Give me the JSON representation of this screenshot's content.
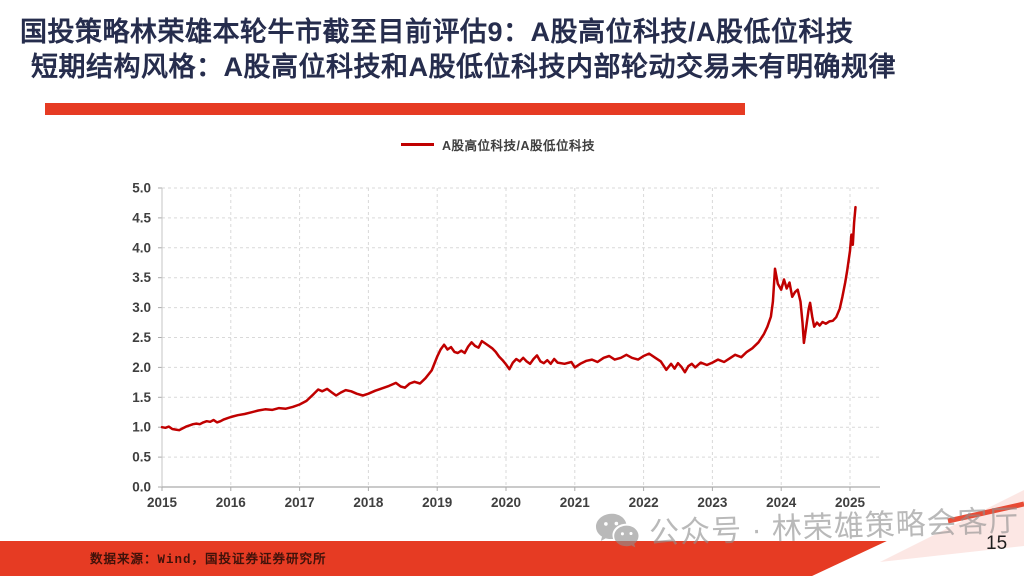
{
  "slide": {
    "title_line1": "国投策略林荣雄本轮牛市截至目前评估9：A股高位科技/A股低位科技",
    "title_line2": "短期结构风格：A股高位科技和A股低位科技内部轮动交易未有明确规律",
    "footer": {
      "source": "数据来源：Wind，国投证券证券研究所",
      "page_number": "15"
    },
    "watermark": {
      "icon": "wechat-icon",
      "text": "公众号 · 林荣雄策略会客厅"
    },
    "colors": {
      "title_navy": "#262d4d",
      "accent_red": "#e63b23",
      "series_red": "#c00000",
      "grid_gray": "#d9d9d9",
      "tick_text": "#3f3f3f"
    }
  },
  "chart_data": {
    "type": "line",
    "title": "",
    "xlabel": "",
    "ylabel": "",
    "legend": [
      "A股高位科技/A股低位科技"
    ],
    "legend_position": "top-center",
    "grid": "dashed-both-axes",
    "xlim": [
      2015,
      2025.4
    ],
    "ylim": [
      0,
      5
    ],
    "ytick_step": 0.5,
    "x_ticks": [
      2015,
      2016,
      2017,
      2018,
      2019,
      2020,
      2021,
      2022,
      2023,
      2024,
      2025
    ],
    "series": [
      {
        "name": "A股高位科技/A股低位科技",
        "color": "#c00000",
        "points": [
          [
            2015.0,
            1.0
          ],
          [
            2015.05,
            0.99
          ],
          [
            2015.1,
            1.01
          ],
          [
            2015.15,
            0.97
          ],
          [
            2015.2,
            0.96
          ],
          [
            2015.25,
            0.95
          ],
          [
            2015.3,
            0.98
          ],
          [
            2015.35,
            1.01
          ],
          [
            2015.4,
            1.03
          ],
          [
            2015.45,
            1.05
          ],
          [
            2015.5,
            1.06
          ],
          [
            2015.55,
            1.05
          ],
          [
            2015.6,
            1.08
          ],
          [
            2015.65,
            1.1
          ],
          [
            2015.7,
            1.09
          ],
          [
            2015.75,
            1.12
          ],
          [
            2015.8,
            1.08
          ],
          [
            2015.85,
            1.1
          ],
          [
            2015.9,
            1.13
          ],
          [
            2015.95,
            1.15
          ],
          [
            2016.0,
            1.17
          ],
          [
            2016.1,
            1.2
          ],
          [
            2016.2,
            1.22
          ],
          [
            2016.3,
            1.25
          ],
          [
            2016.4,
            1.28
          ],
          [
            2016.5,
            1.3
          ],
          [
            2016.6,
            1.29
          ],
          [
            2016.7,
            1.32
          ],
          [
            2016.8,
            1.31
          ],
          [
            2016.9,
            1.34
          ],
          [
            2017.0,
            1.38
          ],
          [
            2017.1,
            1.44
          ],
          [
            2017.2,
            1.55
          ],
          [
            2017.27,
            1.63
          ],
          [
            2017.33,
            1.6
          ],
          [
            2017.4,
            1.64
          ],
          [
            2017.47,
            1.58
          ],
          [
            2017.53,
            1.53
          ],
          [
            2017.6,
            1.58
          ],
          [
            2017.67,
            1.62
          ],
          [
            2017.75,
            1.6
          ],
          [
            2017.83,
            1.56
          ],
          [
            2017.92,
            1.53
          ],
          [
            2018.0,
            1.56
          ],
          [
            2018.1,
            1.61
          ],
          [
            2018.2,
            1.65
          ],
          [
            2018.3,
            1.69
          ],
          [
            2018.4,
            1.74
          ],
          [
            2018.47,
            1.68
          ],
          [
            2018.53,
            1.66
          ],
          [
            2018.6,
            1.73
          ],
          [
            2018.67,
            1.76
          ],
          [
            2018.75,
            1.73
          ],
          [
            2018.83,
            1.82
          ],
          [
            2018.92,
            1.95
          ],
          [
            2019.0,
            2.18
          ],
          [
            2019.05,
            2.3
          ],
          [
            2019.1,
            2.38
          ],
          [
            2019.15,
            2.3
          ],
          [
            2019.2,
            2.34
          ],
          [
            2019.25,
            2.26
          ],
          [
            2019.3,
            2.24
          ],
          [
            2019.35,
            2.28
          ],
          [
            2019.4,
            2.24
          ],
          [
            2019.45,
            2.35
          ],
          [
            2019.5,
            2.42
          ],
          [
            2019.55,
            2.36
          ],
          [
            2019.6,
            2.33
          ],
          [
            2019.65,
            2.44
          ],
          [
            2019.7,
            2.4
          ],
          [
            2019.75,
            2.36
          ],
          [
            2019.8,
            2.32
          ],
          [
            2019.85,
            2.26
          ],
          [
            2019.9,
            2.18
          ],
          [
            2019.95,
            2.12
          ],
          [
            2020.0,
            2.05
          ],
          [
            2020.05,
            1.97
          ],
          [
            2020.1,
            2.08
          ],
          [
            2020.15,
            2.14
          ],
          [
            2020.2,
            2.1
          ],
          [
            2020.25,
            2.16
          ],
          [
            2020.3,
            2.1
          ],
          [
            2020.35,
            2.06
          ],
          [
            2020.4,
            2.14
          ],
          [
            2020.45,
            2.2
          ],
          [
            2020.5,
            2.1
          ],
          [
            2020.55,
            2.07
          ],
          [
            2020.6,
            2.12
          ],
          [
            2020.65,
            2.06
          ],
          [
            2020.7,
            2.14
          ],
          [
            2020.75,
            2.08
          ],
          [
            2020.85,
            2.06
          ],
          [
            2020.95,
            2.09
          ],
          [
            2021.0,
            2.0
          ],
          [
            2021.08,
            2.06
          ],
          [
            2021.17,
            2.11
          ],
          [
            2021.25,
            2.13
          ],
          [
            2021.33,
            2.09
          ],
          [
            2021.42,
            2.16
          ],
          [
            2021.5,
            2.19
          ],
          [
            2021.58,
            2.13
          ],
          [
            2021.67,
            2.16
          ],
          [
            2021.75,
            2.21
          ],
          [
            2021.83,
            2.16
          ],
          [
            2021.92,
            2.13
          ],
          [
            2022.0,
            2.19
          ],
          [
            2022.08,
            2.23
          ],
          [
            2022.17,
            2.16
          ],
          [
            2022.25,
            2.1
          ],
          [
            2022.33,
            1.96
          ],
          [
            2022.4,
            2.06
          ],
          [
            2022.45,
            1.98
          ],
          [
            2022.5,
            2.07
          ],
          [
            2022.55,
            2.01
          ],
          [
            2022.6,
            1.92
          ],
          [
            2022.65,
            2.02
          ],
          [
            2022.7,
            2.06
          ],
          [
            2022.75,
            2.0
          ],
          [
            2022.83,
            2.08
          ],
          [
            2022.92,
            2.04
          ],
          [
            2023.0,
            2.08
          ],
          [
            2023.08,
            2.13
          ],
          [
            2023.17,
            2.09
          ],
          [
            2023.25,
            2.15
          ],
          [
            2023.33,
            2.21
          ],
          [
            2023.42,
            2.17
          ],
          [
            2023.5,
            2.26
          ],
          [
            2023.58,
            2.32
          ],
          [
            2023.67,
            2.42
          ],
          [
            2023.75,
            2.56
          ],
          [
            2023.8,
            2.68
          ],
          [
            2023.85,
            2.85
          ],
          [
            2023.88,
            3.1
          ],
          [
            2023.91,
            3.65
          ],
          [
            2023.95,
            3.4
          ],
          [
            2024.0,
            3.3
          ],
          [
            2024.04,
            3.47
          ],
          [
            2024.08,
            3.32
          ],
          [
            2024.12,
            3.42
          ],
          [
            2024.16,
            3.18
          ],
          [
            2024.2,
            3.26
          ],
          [
            2024.24,
            3.3
          ],
          [
            2024.28,
            3.1
          ],
          [
            2024.31,
            2.75
          ],
          [
            2024.33,
            2.41
          ],
          [
            2024.36,
            2.65
          ],
          [
            2024.4,
            2.98
          ],
          [
            2024.42,
            3.08
          ],
          [
            2024.45,
            2.85
          ],
          [
            2024.48,
            2.68
          ],
          [
            2024.52,
            2.75
          ],
          [
            2024.56,
            2.7
          ],
          [
            2024.6,
            2.76
          ],
          [
            2024.65,
            2.73
          ],
          [
            2024.7,
            2.77
          ],
          [
            2024.75,
            2.78
          ],
          [
            2024.8,
            2.84
          ],
          [
            2024.85,
            2.98
          ],
          [
            2024.89,
            3.18
          ],
          [
            2024.93,
            3.42
          ],
          [
            2024.96,
            3.62
          ],
          [
            2025.0,
            3.95
          ],
          [
            2025.02,
            4.22
          ],
          [
            2025.04,
            4.05
          ],
          [
            2025.06,
            4.42
          ],
          [
            2025.08,
            4.68
          ]
        ]
      }
    ]
  }
}
